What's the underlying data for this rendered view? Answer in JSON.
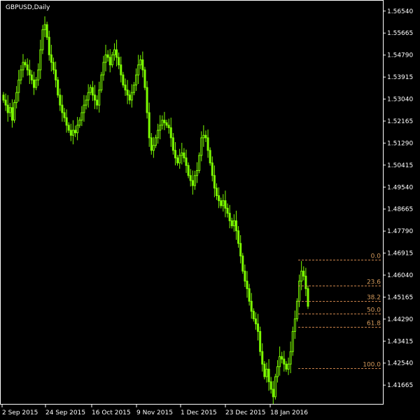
{
  "chart_data": {
    "type": "candlestick",
    "title": "GBPUSD,Daily",
    "background": "#000000",
    "colors": {
      "candle": "#7CFC00",
      "axis": "#ffffff",
      "fib_line": "#c8824a",
      "fib_text": "#d49a5c"
    },
    "ylim": [
      1.4089,
      1.5698
    ],
    "y_ticks": [
      "1.56540",
      "1.55665",
      "1.54790",
      "1.53915",
      "1.53040",
      "1.52165",
      "1.51290",
      "1.50415",
      "1.49540",
      "1.48665",
      "1.47790",
      "1.46915",
      "1.46040",
      "1.45165",
      "1.44290",
      "1.43415",
      "1.42540",
      "1.41665"
    ],
    "x_ticks": [
      "2 Sep 2015",
      "24 Sep 2015",
      "16 Oct 2015",
      "9 Nov 2015",
      "1 Dec 2015",
      "23 Dec 2015",
      "18 Jan 2016"
    ],
    "closes": [
      1.53,
      1.528,
      1.525,
      1.527,
      1.522,
      1.529,
      1.533,
      1.538,
      1.542,
      1.545,
      1.544,
      1.542,
      1.54,
      1.538,
      1.535,
      1.538,
      1.542,
      1.55,
      1.558,
      1.56,
      1.555,
      1.548,
      1.545,
      1.542,
      1.538,
      1.532,
      1.528,
      1.525,
      1.523,
      1.52,
      1.518,
      1.516,
      1.518,
      1.517,
      1.52,
      1.522,
      1.525,
      1.528,
      1.53,
      1.533,
      1.535,
      1.532,
      1.53,
      1.528,
      1.534,
      1.54,
      1.545,
      1.548,
      1.547,
      1.544,
      1.548,
      1.55,
      1.547,
      1.544,
      1.54,
      1.536,
      1.534,
      1.532,
      1.53,
      1.533,
      1.536,
      1.54,
      1.544,
      1.546,
      1.542,
      1.535,
      1.525,
      1.515,
      1.51,
      1.512,
      1.515,
      1.518,
      1.52,
      1.522,
      1.521,
      1.52,
      1.519,
      1.515,
      1.51,
      1.507,
      1.505,
      1.508,
      1.509,
      1.507,
      1.504,
      1.5,
      1.498,
      1.496,
      1.5,
      1.502,
      1.508,
      1.515,
      1.516,
      1.515,
      1.51,
      1.505,
      1.5,
      1.495,
      1.492,
      1.49,
      1.488,
      1.49,
      1.487,
      1.485,
      1.482,
      1.48,
      1.482,
      1.478,
      1.473,
      1.468,
      1.462,
      1.458,
      1.455,
      1.45,
      1.446,
      1.443,
      1.441,
      1.438,
      1.43,
      1.425,
      1.42,
      1.423,
      1.418,
      1.415,
      1.412,
      1.42,
      1.424,
      1.428,
      1.427,
      1.425,
      1.423,
      1.425,
      1.43,
      1.438,
      1.443,
      1.45,
      1.458,
      1.462,
      1.46,
      1.455,
      1.448
    ]
  },
  "fib_levels": [
    {
      "label": "0.0",
      "price": 1.4665
    },
    {
      "label": "23.6",
      "price": 1.4563
    },
    {
      "label": "38.2",
      "price": 1.45
    },
    {
      "label": "50.0",
      "price": 1.445
    },
    {
      "label": "61.8",
      "price": 1.4397
    },
    {
      "label": "100.0",
      "price": 1.4234
    }
  ]
}
